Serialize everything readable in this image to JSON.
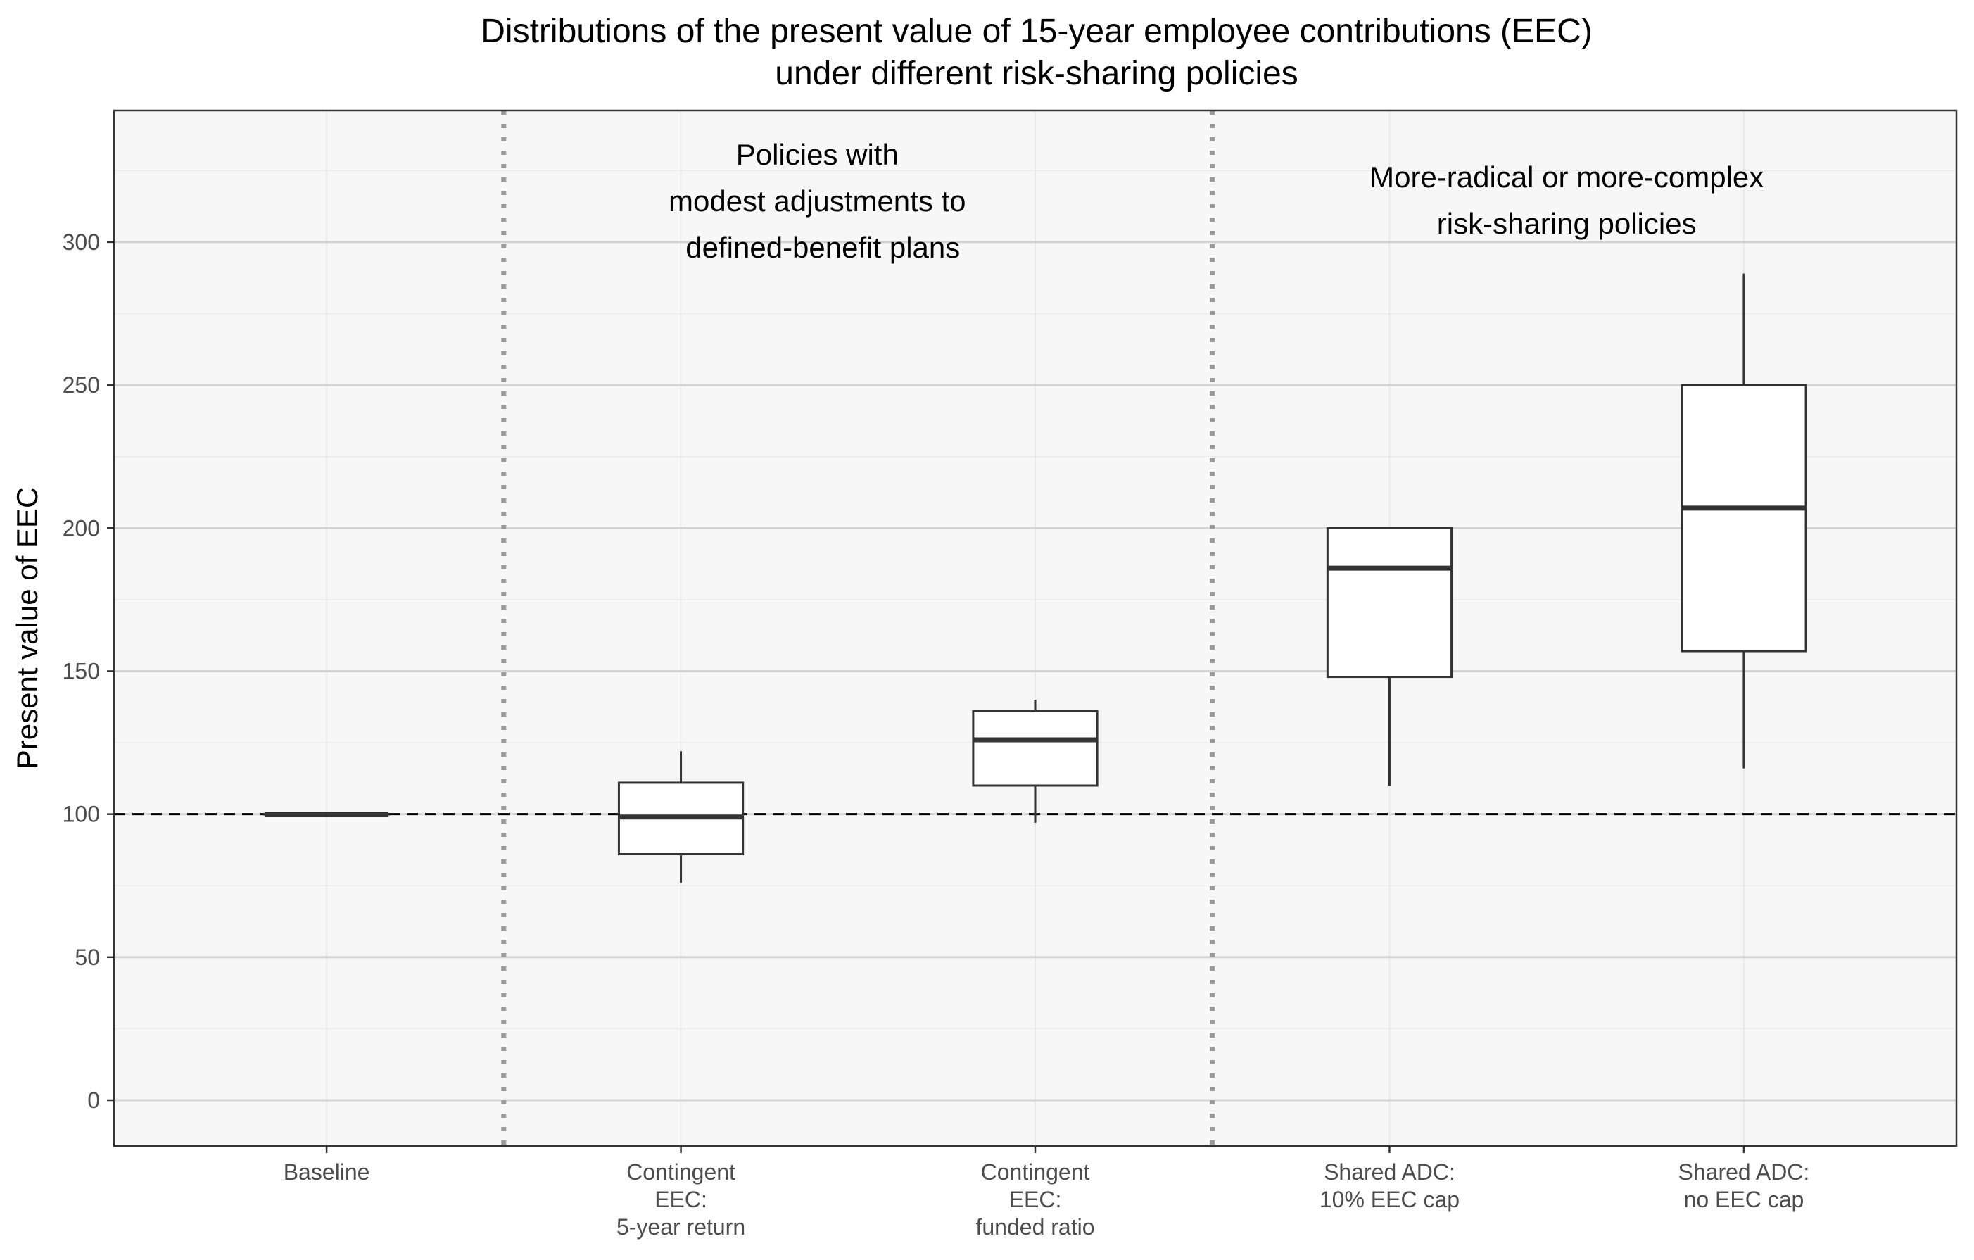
{
  "chart_data": {
    "type": "box",
    "title_lines": [
      "Distributions of the present value of 15-year employee contributions (EEC)",
      "under different risk-sharing policies"
    ],
    "ylabel": "Present value of EEC",
    "xlabel": "",
    "ylim": [
      -16,
      346
    ],
    "yticks": [
      0,
      50,
      100,
      150,
      200,
      250,
      300
    ],
    "grid": true,
    "reference_line": {
      "y": 100,
      "style": "dashed"
    },
    "categories": [
      [
        "Baseline"
      ],
      [
        "Contingent",
        "EEC:",
        "5-year return"
      ],
      [
        "Contingent",
        "EEC:",
        "funded ratio"
      ],
      [
        "Shared ADC:",
        "10% EEC cap"
      ],
      [
        "Shared ADC:",
        "no EEC cap"
      ]
    ],
    "boxes": [
      {
        "whisker_low": 100,
        "q1": 100,
        "median": 100,
        "q3": 100,
        "whisker_high": 100
      },
      {
        "whisker_low": 76,
        "q1": 86,
        "median": 99,
        "q3": 111,
        "whisker_high": 122
      },
      {
        "whisker_low": 97,
        "q1": 110,
        "median": 126,
        "q3": 136,
        "whisker_high": 140
      },
      {
        "whisker_low": 110,
        "q1": 148,
        "median": 186,
        "q3": 200,
        "whisker_high": 200
      },
      {
        "whisker_low": 116,
        "q1": 157,
        "median": 207,
        "q3": 250,
        "whisker_high": 289
      }
    ],
    "group_dividers_after": [
      1,
      3
    ],
    "annotations": [
      {
        "after_category": 2,
        "lines": [
          "Policies with",
          "modest adjustments to",
          "defined-benefit plans"
        ]
      },
      {
        "after_category": 4,
        "lines": [
          "More-radical or more-complex",
          "risk-sharing policies"
        ]
      }
    ],
    "colors": {
      "panel_background": "#f7f7f7",
      "grid": "#d3d3d3",
      "box_fill": "#ffffff",
      "box_stroke": "#333333",
      "divider": "#999999"
    }
  }
}
